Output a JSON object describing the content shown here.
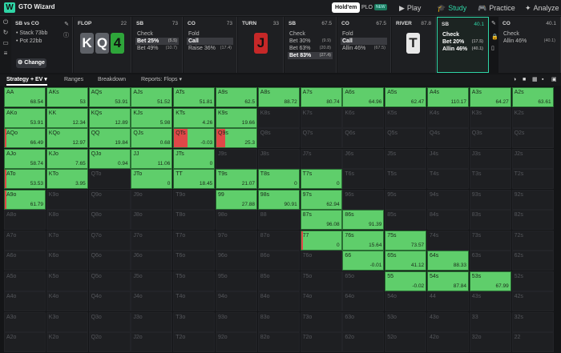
{
  "topbar": {
    "app_name": "GTO Wizard",
    "gametypes": [
      "Hold'em",
      "PLO"
    ],
    "plo_badge": "NEW",
    "nav": [
      "Play",
      "Study",
      "Practice",
      "Analyze"
    ]
  },
  "spot": {
    "title": "SB vs CO",
    "stack": "• Stack 73bb",
    "pot": "• Pot 22bb",
    "change": "Change"
  },
  "flop": {
    "label": "FLOP",
    "num": "22",
    "cards": [
      "K",
      "Q",
      "4"
    ]
  },
  "flop_sb": {
    "label": "SB",
    "num": "73",
    "actions": [
      [
        "Check",
        ""
      ],
      [
        "Bet 25%",
        "(5.5)"
      ],
      [
        "Bet 49%",
        "(10.7)"
      ]
    ]
  },
  "flop_co": {
    "label": "CO",
    "num": "73",
    "actions": [
      [
        "Fold",
        ""
      ],
      [
        "Call",
        ""
      ],
      [
        "Raise 36%",
        "(17.4)"
      ]
    ]
  },
  "turn": {
    "label": "TURN",
    "num": "33",
    "card": "J"
  },
  "turn_sb": {
    "label": "SB",
    "num": "67.5",
    "actions": [
      [
        "Check",
        ""
      ],
      [
        "Bet 30%",
        "(9.9)"
      ],
      [
        "Bet 63%",
        "(20.8)"
      ],
      [
        "Bet 83%",
        "(27.4)"
      ]
    ]
  },
  "turn_co": {
    "label": "CO",
    "num": "67.5",
    "actions": [
      [
        "Fold",
        ""
      ],
      [
        "Call",
        ""
      ],
      [
        "Allin 46%",
        "(67.5)"
      ]
    ]
  },
  "river": {
    "label": "RIVER",
    "num": "87.8",
    "card": "T"
  },
  "river_sb": {
    "label": "SB",
    "num": "40.1",
    "actions": [
      [
        "Check",
        ""
      ],
      [
        "Bet 20%",
        "(17.5)"
      ],
      [
        "Allin 46%",
        "(40.1)"
      ]
    ]
  },
  "river_co": {
    "label": "CO",
    "num": "40.1",
    "actions": [
      [
        "Check",
        ""
      ],
      [
        "Allin 46%",
        "(40.1)"
      ]
    ]
  },
  "subnav": [
    "Strategy + EV",
    "Ranges",
    "Breakdown",
    "Reports: Flops"
  ],
  "colors": {
    "accent": "#2fd5a6",
    "call_green": "#5fce6b",
    "fold_red": "#e04848"
  },
  "grid": {
    "rows": [
      [
        [
          "AA",
          "68.54",
          1
        ],
        [
          "AKs",
          "53",
          1
        ],
        [
          "AQs",
          "53.91",
          1
        ],
        [
          "AJs",
          "51.52",
          1
        ],
        [
          "ATs",
          "51.81",
          1
        ],
        [
          "A9s",
          "62.5",
          1
        ],
        [
          "A8s",
          "88.72",
          1
        ],
        [
          "A7s",
          "80.74",
          1
        ],
        [
          "A6s",
          "64.96",
          1
        ],
        [
          "A5s",
          "62.47",
          1
        ],
        [
          "A4s",
          "110.17",
          1
        ],
        [
          "A3s",
          "64.27",
          1
        ],
        [
          "A2s",
          "63.61",
          1
        ]
      ],
      [
        [
          "AKo",
          "53.91",
          1
        ],
        [
          "KK",
          "12.34",
          1
        ],
        [
          "KQs",
          "12.89",
          1
        ],
        [
          "KJs",
          "5.98",
          1
        ],
        [
          "KTs",
          "4.26",
          1
        ],
        [
          "K9s",
          "19.66",
          1
        ],
        [
          "K8s",
          "",
          0
        ],
        [
          "K7s",
          "",
          0
        ],
        [
          "K6s",
          "",
          0
        ],
        [
          "K5s",
          "",
          0
        ],
        [
          "K4s",
          "",
          0
        ],
        [
          "K3s",
          "",
          0
        ],
        [
          "K2s",
          "",
          0
        ]
      ],
      [
        [
          "AQo",
          "66.49",
          1
        ],
        [
          "KQo",
          "12.97",
          1
        ],
        [
          "QQ",
          "19.84",
          1
        ],
        [
          "QJs",
          "0.68",
          1
        ],
        [
          "QTs",
          "-0.03",
          1
        ],
        [
          "Q9s",
          "25.3",
          1
        ],
        [
          "Q8s",
          "",
          0
        ],
        [
          "Q7s",
          "",
          0
        ],
        [
          "Q6s",
          "",
          0
        ],
        [
          "Q5s",
          "",
          0
        ],
        [
          "Q4s",
          "",
          0
        ],
        [
          "Q3s",
          "",
          0
        ],
        [
          "Q2s",
          "",
          0
        ]
      ],
      [
        [
          "AJo",
          "58.74",
          1
        ],
        [
          "KJo",
          "7.65",
          1
        ],
        [
          "QJo",
          "0.94",
          1
        ],
        [
          "JJ",
          "11.06",
          1
        ],
        [
          "JTs",
          "0",
          1
        ],
        [
          "J9s",
          "",
          0
        ],
        [
          "J8s",
          "",
          0
        ],
        [
          "J7s",
          "",
          0
        ],
        [
          "J6s",
          "",
          0
        ],
        [
          "J5s",
          "",
          0
        ],
        [
          "J4s",
          "",
          0
        ],
        [
          "J3s",
          "",
          0
        ],
        [
          "J2s",
          "",
          0
        ]
      ],
      [
        [
          "ATo",
          "53.53",
          1
        ],
        [
          "KTo",
          "3.95",
          1
        ],
        [
          "QTo",
          "",
          0
        ],
        [
          "JTo",
          "0",
          1
        ],
        [
          "TT",
          "18.45",
          1
        ],
        [
          "T9s",
          "21.07",
          1
        ],
        [
          "T8s",
          "0",
          1
        ],
        [
          "T7s",
          "0",
          1
        ],
        [
          "T6s",
          "",
          0
        ],
        [
          "T5s",
          "",
          0
        ],
        [
          "T4s",
          "",
          0
        ],
        [
          "T3s",
          "",
          0
        ],
        [
          "T2s",
          "",
          0
        ]
      ],
      [
        [
          "A9o",
          "61.79",
          1
        ],
        [
          "K9o",
          "",
          0
        ],
        [
          "Q9o",
          "",
          0
        ],
        [
          "J9o",
          "",
          0
        ],
        [
          "T9o",
          "",
          0
        ],
        [
          "99",
          "27.88",
          1
        ],
        [
          "98s",
          "90.91",
          1
        ],
        [
          "97s",
          "62.94",
          1
        ],
        [
          "96s",
          "",
          0
        ],
        [
          "95s",
          "",
          0
        ],
        [
          "94s",
          "",
          0
        ],
        [
          "93s",
          "",
          0
        ],
        [
          "92s",
          "",
          0
        ]
      ],
      [
        [
          "A8o",
          "",
          0
        ],
        [
          "K8o",
          "",
          0
        ],
        [
          "Q8o",
          "",
          0
        ],
        [
          "J8o",
          "",
          0
        ],
        [
          "T8o",
          "",
          0
        ],
        [
          "98o",
          "",
          0
        ],
        [
          "88",
          "",
          0
        ],
        [
          "87s",
          "96.08",
          1
        ],
        [
          "86s",
          "91.39",
          1
        ],
        [
          "85s",
          "",
          0
        ],
        [
          "84s",
          "",
          0
        ],
        [
          "83s",
          "",
          0
        ],
        [
          "82s",
          "",
          0
        ]
      ],
      [
        [
          "A7o",
          "",
          0
        ],
        [
          "K7o",
          "",
          0
        ],
        [
          "Q7o",
          "",
          0
        ],
        [
          "J7o",
          "",
          0
        ],
        [
          "T7o",
          "",
          0
        ],
        [
          "97o",
          "",
          0
        ],
        [
          "87o",
          "",
          0
        ],
        [
          "77",
          "0",
          1
        ],
        [
          "76s",
          "15.64",
          1
        ],
        [
          "75s",
          "73.57",
          1
        ],
        [
          "74s",
          "",
          0
        ],
        [
          "73s",
          "",
          0
        ],
        [
          "72s",
          "",
          0
        ]
      ],
      [
        [
          "A6o",
          "",
          0
        ],
        [
          "K6o",
          "",
          0
        ],
        [
          "Q6o",
          "",
          0
        ],
        [
          "J6o",
          "",
          0
        ],
        [
          "T6o",
          "",
          0
        ],
        [
          "96o",
          "",
          0
        ],
        [
          "86o",
          "",
          0
        ],
        [
          "76o",
          "",
          0
        ],
        [
          "66",
          "-0.01",
          1
        ],
        [
          "65s",
          "41.12",
          1
        ],
        [
          "64s",
          "88.33",
          1
        ],
        [
          "63s",
          "",
          0
        ],
        [
          "62s",
          "",
          0
        ]
      ],
      [
        [
          "A5o",
          "",
          0
        ],
        [
          "K5o",
          "",
          0
        ],
        [
          "Q5o",
          "",
          0
        ],
        [
          "J5o",
          "",
          0
        ],
        [
          "T5o",
          "",
          0
        ],
        [
          "95o",
          "",
          0
        ],
        [
          "85o",
          "",
          0
        ],
        [
          "75o",
          "",
          0
        ],
        [
          "65o",
          "",
          0
        ],
        [
          "55",
          "-0.02",
          1
        ],
        [
          "54s",
          "87.84",
          1
        ],
        [
          "53s",
          "67.99",
          1
        ],
        [
          "52s",
          "",
          0
        ]
      ],
      [
        [
          "A4o",
          "",
          0
        ],
        [
          "K4o",
          "",
          0
        ],
        [
          "Q4o",
          "",
          0
        ],
        [
          "J4o",
          "",
          0
        ],
        [
          "T4o",
          "",
          0
        ],
        [
          "94o",
          "",
          0
        ],
        [
          "84o",
          "",
          0
        ],
        [
          "74o",
          "",
          0
        ],
        [
          "64o",
          "",
          0
        ],
        [
          "54o",
          "",
          0
        ],
        [
          "44",
          "",
          0
        ],
        [
          "43s",
          "",
          0
        ],
        [
          "42s",
          "",
          0
        ]
      ],
      [
        [
          "A3o",
          "",
          0
        ],
        [
          "K3o",
          "",
          0
        ],
        [
          "Q3o",
          "",
          0
        ],
        [
          "J3o",
          "",
          0
        ],
        [
          "T3o",
          "",
          0
        ],
        [
          "93o",
          "",
          0
        ],
        [
          "83o",
          "",
          0
        ],
        [
          "73o",
          "",
          0
        ],
        [
          "63o",
          "",
          0
        ],
        [
          "53o",
          "",
          0
        ],
        [
          "43o",
          "",
          0
        ],
        [
          "33",
          "",
          0
        ],
        [
          "32s",
          "",
          0
        ]
      ],
      [
        [
          "A2o",
          "",
          0
        ],
        [
          "K2o",
          "",
          0
        ],
        [
          "Q2o",
          "",
          0
        ],
        [
          "J2o",
          "",
          0
        ],
        [
          "T2o",
          "",
          0
        ],
        [
          "92o",
          "",
          0
        ],
        [
          "82o",
          "",
          0
        ],
        [
          "72o",
          "",
          0
        ],
        [
          "62o",
          "",
          0
        ],
        [
          "52o",
          "",
          0
        ],
        [
          "42o",
          "",
          0
        ],
        [
          "32o",
          "",
          0
        ],
        [
          "22",
          "",
          0
        ]
      ]
    ],
    "fold_fraction": {
      "AQo": 0.04,
      "ATo": 0.04,
      "QTs": 0.33,
      "Q9s": 0.22,
      "77": 0.05,
      "A9o": 0.04
    }
  }
}
